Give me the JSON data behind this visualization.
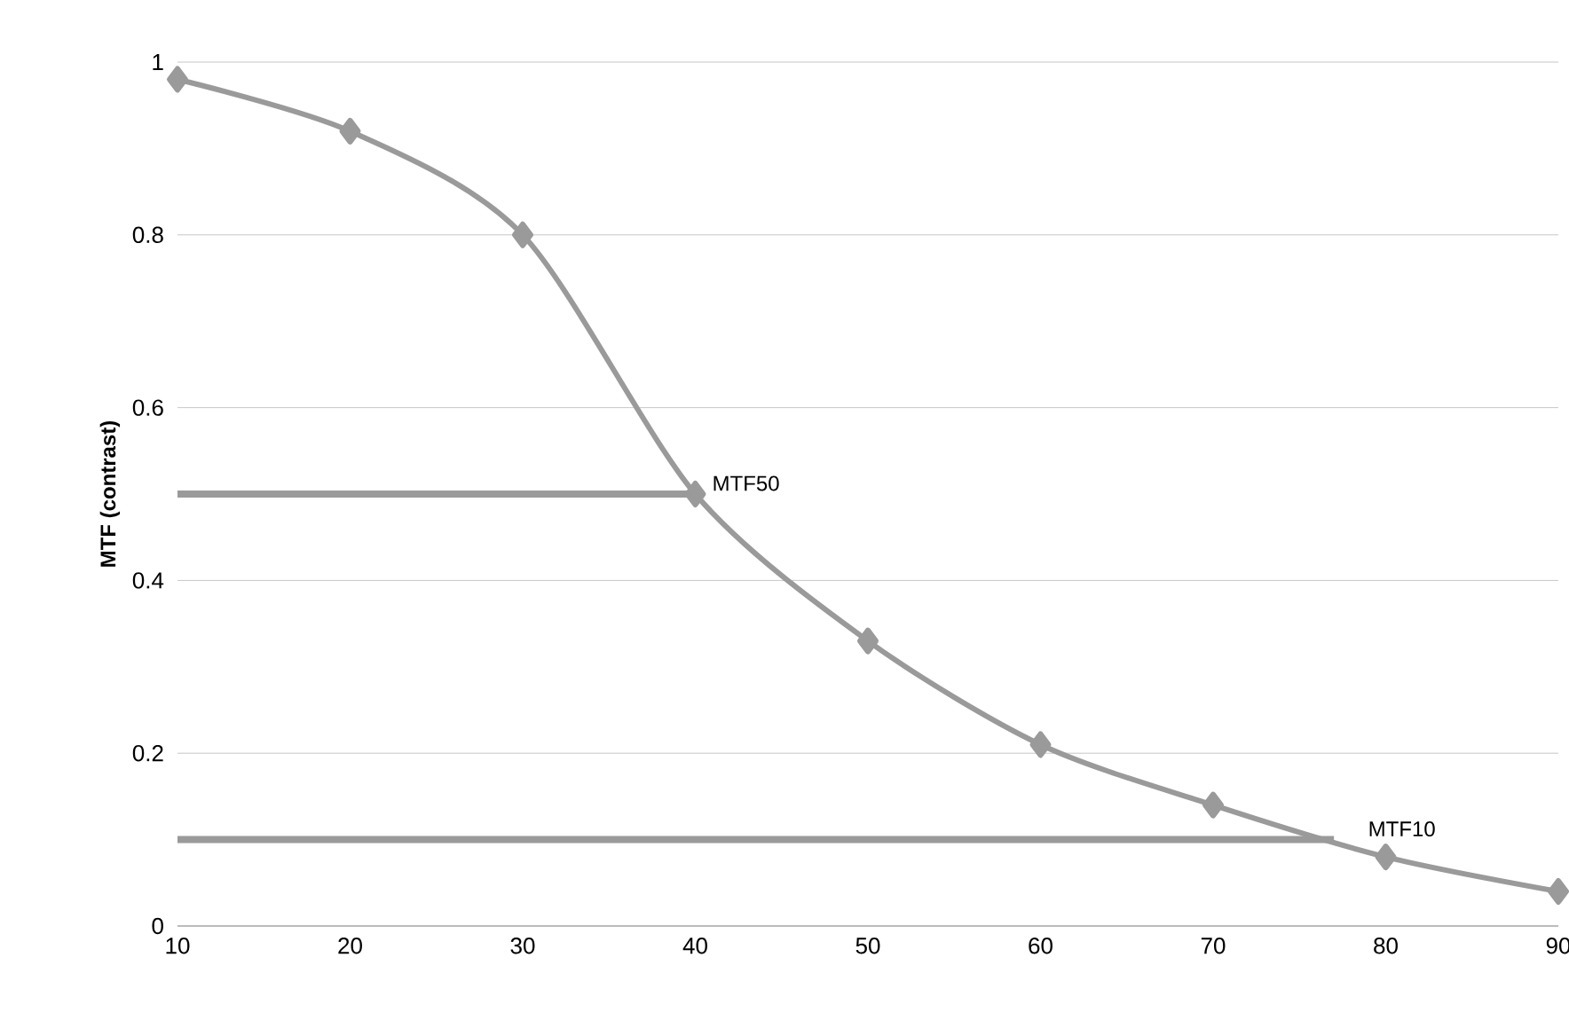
{
  "chart_data": {
    "type": "line",
    "ylabel": "MTF (contrast)",
    "x": [
      10,
      20,
      30,
      40,
      50,
      60,
      70,
      80,
      90
    ],
    "series": [
      {
        "color": "#9a9a9a",
        "marker": "diamond",
        "values": [
          0.98,
          0.92,
          0.8,
          0.5,
          0.33,
          0.21,
          0.14,
          0.08,
          0.04
        ]
      },
      {
        "color": "#9a9a9a",
        "marker": "none",
        "x": [
          10,
          40
        ],
        "values": [
          0.5,
          0.5
        ]
      },
      {
        "color": "#9a9a9a",
        "marker": "none",
        "x": [
          10,
          77
        ],
        "values": [
          0.1,
          0.1
        ]
      }
    ],
    "annotations": [
      {
        "text": "MTF50",
        "x": 40,
        "y": 0.5
      },
      {
        "text": "MTF10",
        "x": 78,
        "y": 0.1
      }
    ],
    "xlim": [
      10,
      90
    ],
    "ylim": [
      0,
      1
    ],
    "xticks": [
      10,
      20,
      30,
      40,
      50,
      60,
      70,
      80,
      90
    ],
    "yticks": [
      0,
      {
        "value": 0.2,
        "label": "0.2"
      },
      {
        "value": 0.4,
        "label": "0.4"
      },
      {
        "value": 0.6,
        "label": "0.6"
      },
      {
        "value": 0.8,
        "label": "0.8"
      },
      1
    ],
    "grid": "y"
  }
}
